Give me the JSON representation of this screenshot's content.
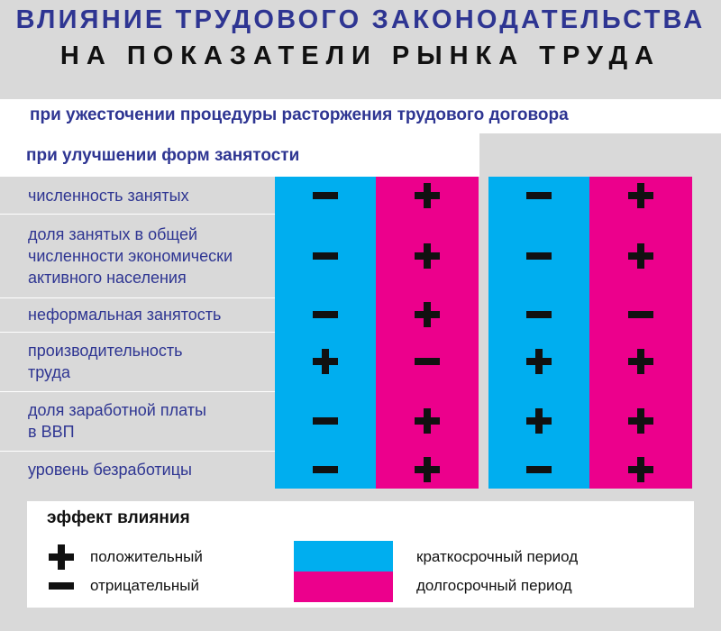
{
  "title": {
    "line1": "ВЛИЯНИЕ ТРУДОВОГО ЗАКОНОДАТЕЛЬСТВА",
    "line2": "НА ПОКАЗАТЕЛИ РЫНКА ТРУДА"
  },
  "headers": {
    "outer": "при ужесточении процедуры расторжения трудового договора",
    "inner": "при улучшении форм занятости"
  },
  "colors": {
    "short_term": "#00aeef",
    "long_term": "#ec008c",
    "title_blue": "#2e3592",
    "background": "#d9d9d9"
  },
  "rows": [
    {
      "label": "численность занятых",
      "effects": [
        "-",
        "+",
        "-",
        "+"
      ]
    },
    {
      "label": "доля занятых в общей\nчисленности экономически\nактивного населения",
      "effects": [
        "-",
        "+",
        "-",
        "+"
      ]
    },
    {
      "label": "неформальная занятость",
      "effects": [
        "-",
        "+",
        "-",
        "-"
      ]
    },
    {
      "label": "производительность\nтруда",
      "effects": [
        "+",
        "-",
        "+",
        "+"
      ]
    },
    {
      "label": "доля заработной платы\nв ВВП",
      "effects": [
        "-",
        "+",
        "+",
        "+"
      ]
    },
    {
      "label": "уровень безработицы",
      "effects": [
        "-",
        "+",
        "-",
        "+"
      ]
    }
  ],
  "legend": {
    "title": "эффект влияния",
    "positive_icon": "plus-icon",
    "positive_label": "положительный",
    "negative_icon": "minus-icon",
    "negative_label": "отрицательный",
    "short_term_label": "краткосрочный период",
    "long_term_label": "долгосрочный период"
  }
}
